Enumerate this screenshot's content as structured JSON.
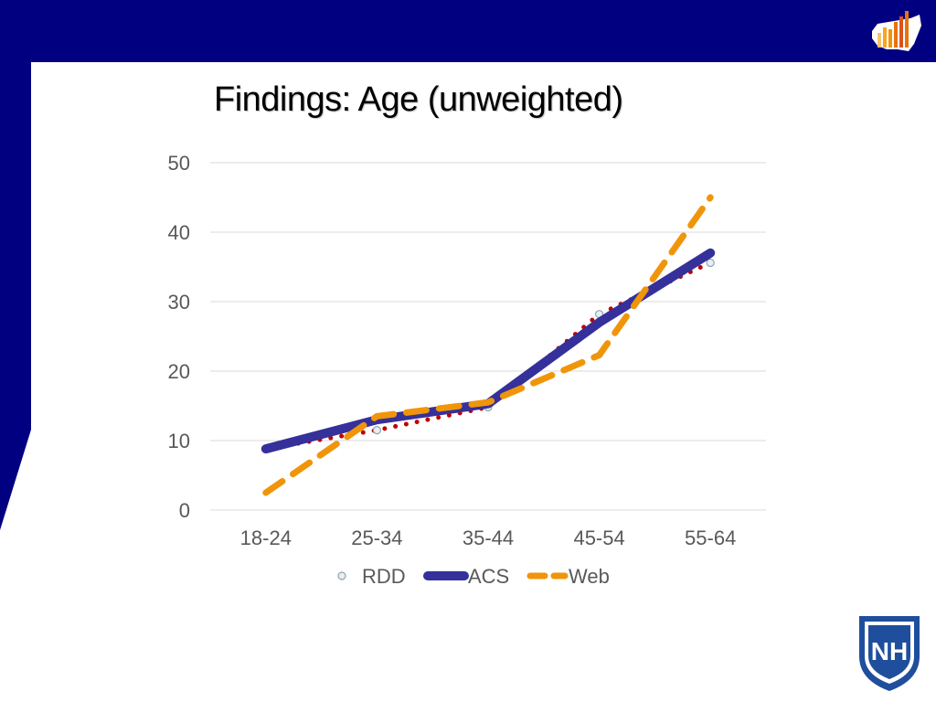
{
  "slide": {
    "title": "Findings: Age (unweighted)",
    "logo_top_icon": "us-map-bar-chart-icon",
    "logo_bottom_icon": "unh-shield-icon",
    "logo_bottom_text": "NH"
  },
  "colors": {
    "brand_navy": "#000080",
    "rdd": "#C00000",
    "acs": "#35309A",
    "web": "#F0950A",
    "grid": "#D9D9D9",
    "tick_text": "#595959"
  },
  "chart_data": {
    "type": "line",
    "title": "",
    "xlabel": "",
    "ylabel": "",
    "categories": [
      "18-24",
      "25-34",
      "35-44",
      "45-54",
      "55-64"
    ],
    "ylim": [
      0,
      50
    ],
    "yticks": [
      0,
      10,
      20,
      30,
      40,
      50
    ],
    "grid": true,
    "legend_position": "bottom",
    "series": [
      {
        "name": "RDD",
        "values": [
          8.8,
          11.5,
          14.8,
          28.2,
          35.6
        ],
        "style": "dotted"
      },
      {
        "name": "ACS",
        "values": [
          8.8,
          13.0,
          15.3,
          27.0,
          37.0
        ],
        "style": "solid"
      },
      {
        "name": "Web",
        "values": [
          2.5,
          13.5,
          15.5,
          22.3,
          45.0
        ],
        "style": "dashed"
      }
    ]
  }
}
